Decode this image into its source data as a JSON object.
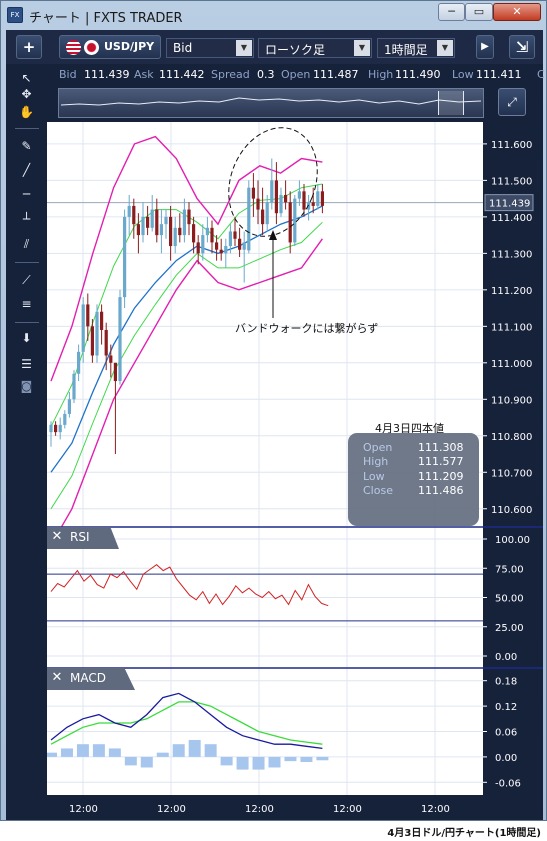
{
  "window": {
    "title": "チャート | FXTS TRADER",
    "app_icon": "FX",
    "min_label": "─",
    "max_label": "▭",
    "close_label": "✕"
  },
  "toolbar": {
    "add_label": "+",
    "symbol": "USD/JPY",
    "price_type": "Bid",
    "chart_type": "ローソク足",
    "timeframe": "1時間足",
    "detach_label": "⇲"
  },
  "quote": {
    "bid_label": "Bid",
    "bid": "111.439",
    "ask_label": "Ask",
    "ask": "111.442",
    "spread_label": "Spread",
    "spread": "0.3",
    "open_label": "Open",
    "open": "111.487",
    "high_label": "High",
    "high": "111.490",
    "low_label": "Low",
    "low": "111.411",
    "c_label": "C"
  },
  "navigator": {
    "icon": "zoom-arrows-icon"
  },
  "sidebar": {
    "tools": [
      "cursor-icon",
      "crosshair-icon",
      "hand-icon",
      "trendline-icon",
      "line-icon",
      "horizontal-line-icon",
      "vertical-line-icon",
      "channel-icon",
      "fan-icon",
      "levels-icon",
      "download-icon",
      "list-icon",
      "camera-icon"
    ]
  },
  "chart": {
    "price_ticks": [
      "111.600",
      "111.500",
      "111.400",
      "111.300",
      "111.200",
      "111.100",
      "111.000",
      "110.900",
      "110.800",
      "110.700",
      "110.600"
    ],
    "current_price": "111.439",
    "time_ticks": [
      "12:00",
      "12:00",
      "12:00",
      "12:00",
      "12:00"
    ],
    "annotation": "バンドウォークには繋がらず",
    "colors": {
      "bg": "#ffffff",
      "grid": "#dfe6f0",
      "up": "#6aa8cc",
      "down": "#8a1e1e",
      "bb_outer": "#e21fb0",
      "bb_inner": "#40d84a",
      "ma": "#1e72c8",
      "rsi": "#d22424",
      "macd": "#1a1aa0",
      "signal": "#3adc3a",
      "hist": "#a7c6ee",
      "axis_bg": "#16213a"
    }
  },
  "ohlc_box": {
    "title": "4月3日四本値",
    "open_label": "Open",
    "open": "111.308",
    "high_label": "High",
    "high": "111.577",
    "low_label": "Low",
    "low": "111.209",
    "close_label": "Close",
    "close": "111.486"
  },
  "rsi": {
    "title": "RSI",
    "close_label": "✕",
    "ticks": [
      "100.00",
      "75.00",
      "50.00",
      "25.00",
      "0.00"
    ],
    "levels": [
      70,
      30
    ]
  },
  "macd": {
    "title": "MACD",
    "close_label": "✕",
    "ticks": [
      "0.18",
      "0.12",
      "0.06",
      "0.00",
      "-0.06"
    ]
  },
  "chart_data": [
    {
      "type": "candlestick",
      "title": "USD/JPY 1時間足",
      "series": [
        {
          "name": "USD/JPY",
          "ohlc": [
            [
              110.81,
              110.84,
              110.77,
              110.83
            ],
            [
              110.83,
              110.84,
              110.8,
              110.81
            ],
            [
              110.81,
              110.85,
              110.79,
              110.83
            ],
            [
              110.83,
              110.87,
              110.82,
              110.86
            ],
            [
              110.86,
              110.92,
              110.85,
              110.9
            ],
            [
              110.9,
              110.98,
              110.89,
              110.97
            ],
            [
              110.97,
              111.05,
              110.95,
              111.03
            ],
            [
              111.03,
              111.18,
              111.0,
              111.16
            ],
            [
              111.16,
              111.19,
              111.06,
              111.1
            ],
            [
              111.1,
              111.12,
              111.0,
              111.02
            ],
            [
              111.02,
              111.16,
              111.0,
              111.14
            ],
            [
              111.14,
              111.16,
              111.05,
              111.09
            ],
            [
              111.09,
              111.11,
              110.98,
              111.02
            ],
            [
              111.02,
              111.05,
              110.96,
              111.0
            ],
            [
              111.0,
              111.0,
              110.75,
              110.95
            ],
            [
              110.95,
              111.2,
              110.94,
              111.18
            ],
            [
              111.18,
              111.42,
              111.15,
              111.4
            ],
            [
              111.4,
              111.46,
              111.35,
              111.43
            ],
            [
              111.43,
              111.45,
              111.34,
              111.38
            ],
            [
              111.38,
              111.41,
              111.3,
              111.35
            ],
            [
              111.35,
              111.44,
              111.33,
              111.4
            ],
            [
              111.4,
              111.43,
              111.35,
              111.37
            ],
            [
              111.37,
              111.46,
              111.36,
              111.42
            ],
            [
              111.42,
              111.45,
              111.33,
              111.35
            ],
            [
              111.35,
              111.42,
              111.3,
              111.38
            ],
            [
              111.38,
              111.42,
              111.34,
              111.4
            ],
            [
              111.4,
              111.43,
              111.28,
              111.32
            ],
            [
              111.32,
              111.4,
              111.3,
              111.37
            ],
            [
              111.37,
              111.41,
              111.33,
              111.35
            ],
            [
              111.35,
              111.45,
              111.33,
              111.42
            ],
            [
              111.42,
              111.44,
              111.35,
              111.38
            ],
            [
              111.38,
              111.4,
              111.3,
              111.33
            ],
            [
              111.33,
              111.35,
              111.27,
              111.3
            ],
            [
              111.3,
              111.38,
              111.28,
              111.35
            ],
            [
              111.35,
              111.4,
              111.33,
              111.37
            ],
            [
              111.37,
              111.39,
              111.3,
              111.33
            ],
            [
              111.33,
              111.35,
              111.28,
              111.31
            ],
            [
              111.31,
              111.34,
              111.28,
              111.3
            ],
            [
              111.3,
              111.34,
              111.26,
              111.32
            ],
            [
              111.32,
              111.38,
              111.3,
              111.36
            ],
            [
              111.36,
              111.4,
              111.32,
              111.34
            ],
            [
              111.34,
              111.37,
              111.29,
              111.31
            ],
            [
              111.31,
              111.36,
              111.22,
              111.33
            ],
            [
              111.308,
              111.5,
              111.3,
              111.48
            ],
            [
              111.48,
              111.52,
              111.4,
              111.45
            ],
            [
              111.45,
              111.5,
              111.38,
              111.42
            ],
            [
              111.42,
              111.48,
              111.35,
              111.38
            ],
            [
              111.38,
              111.46,
              111.36,
              111.44
            ],
            [
              111.44,
              111.56,
              111.42,
              111.5
            ],
            [
              111.5,
              111.55,
              111.38,
              111.41
            ],
            [
              111.41,
              111.48,
              111.4,
              111.46
            ],
            [
              111.46,
              111.5,
              111.42,
              111.44
            ],
            [
              111.44,
              111.47,
              111.3,
              111.33
            ],
            [
              111.33,
              111.46,
              111.32,
              111.45
            ],
            [
              111.45,
              111.5,
              111.43,
              111.47
            ],
            [
              111.47,
              111.49,
              111.4,
              111.42
            ],
            [
              111.42,
              111.46,
              111.39,
              111.44
            ],
            [
              111.44,
              111.48,
              111.41,
              111.43
            ],
            [
              111.43,
              111.49,
              111.42,
              111.47
            ],
            [
              111.47,
              111.49,
              111.41,
              111.43
            ]
          ]
        },
        {
          "name": "BB +2σ",
          "values": [
            110.95,
            111.1,
            111.3,
            111.48,
            111.6,
            111.62,
            111.56,
            111.45,
            111.38,
            111.5,
            111.54,
            111.52,
            111.56,
            111.55
          ]
        },
        {
          "name": "BB -2σ",
          "values": [
            110.5,
            110.6,
            110.75,
            110.9,
            111.0,
            111.1,
            111.2,
            111.28,
            111.22,
            111.2,
            111.22,
            111.24,
            111.26,
            111.34
          ]
        },
        {
          "name": "MA",
          "values": [
            110.7,
            110.78,
            110.92,
            111.05,
            111.15,
            111.22,
            111.28,
            111.32,
            111.3,
            111.32,
            111.35,
            111.38,
            111.4,
            111.43
          ]
        }
      ]
    },
    {
      "type": "line",
      "title": "RSI",
      "ylim": [
        0,
        100
      ],
      "series": [
        {
          "name": "RSI",
          "values": [
            55,
            62,
            59,
            66,
            73,
            64,
            69,
            61,
            58,
            70,
            67,
            72,
            64,
            57,
            70,
            74,
            78,
            73,
            76,
            66,
            59,
            52,
            48,
            55,
            45,
            53,
            44,
            51,
            60,
            54,
            58,
            53,
            50,
            55,
            49,
            52,
            44,
            56,
            48,
            61,
            51,
            45,
            43
          ]
        }
      ]
    },
    {
      "type": "line",
      "title": "MACD",
      "ylim": [
        -0.06,
        0.18
      ],
      "series": [
        {
          "name": "MACD",
          "values": [
            0.04,
            0.07,
            0.09,
            0.1,
            0.08,
            0.07,
            0.1,
            0.14,
            0.15,
            0.13,
            0.1,
            0.07,
            0.05,
            0.04,
            0.03,
            0.03,
            0.025,
            0.02
          ]
        },
        {
          "name": "Signal",
          "values": [
            0.03,
            0.05,
            0.07,
            0.08,
            0.08,
            0.08,
            0.09,
            0.11,
            0.13,
            0.13,
            0.12,
            0.1,
            0.08,
            0.06,
            0.05,
            0.04,
            0.035,
            0.03
          ]
        },
        {
          "name": "Histogram",
          "values": [
            0.01,
            0.02,
            0.03,
            0.03,
            0.02,
            -0.02,
            -0.025,
            0.01,
            0.03,
            0.04,
            0.03,
            -0.02,
            -0.03,
            -0.03,
            -0.025,
            -0.01,
            -0.012,
            -0.008
          ]
        }
      ]
    }
  ]
}
